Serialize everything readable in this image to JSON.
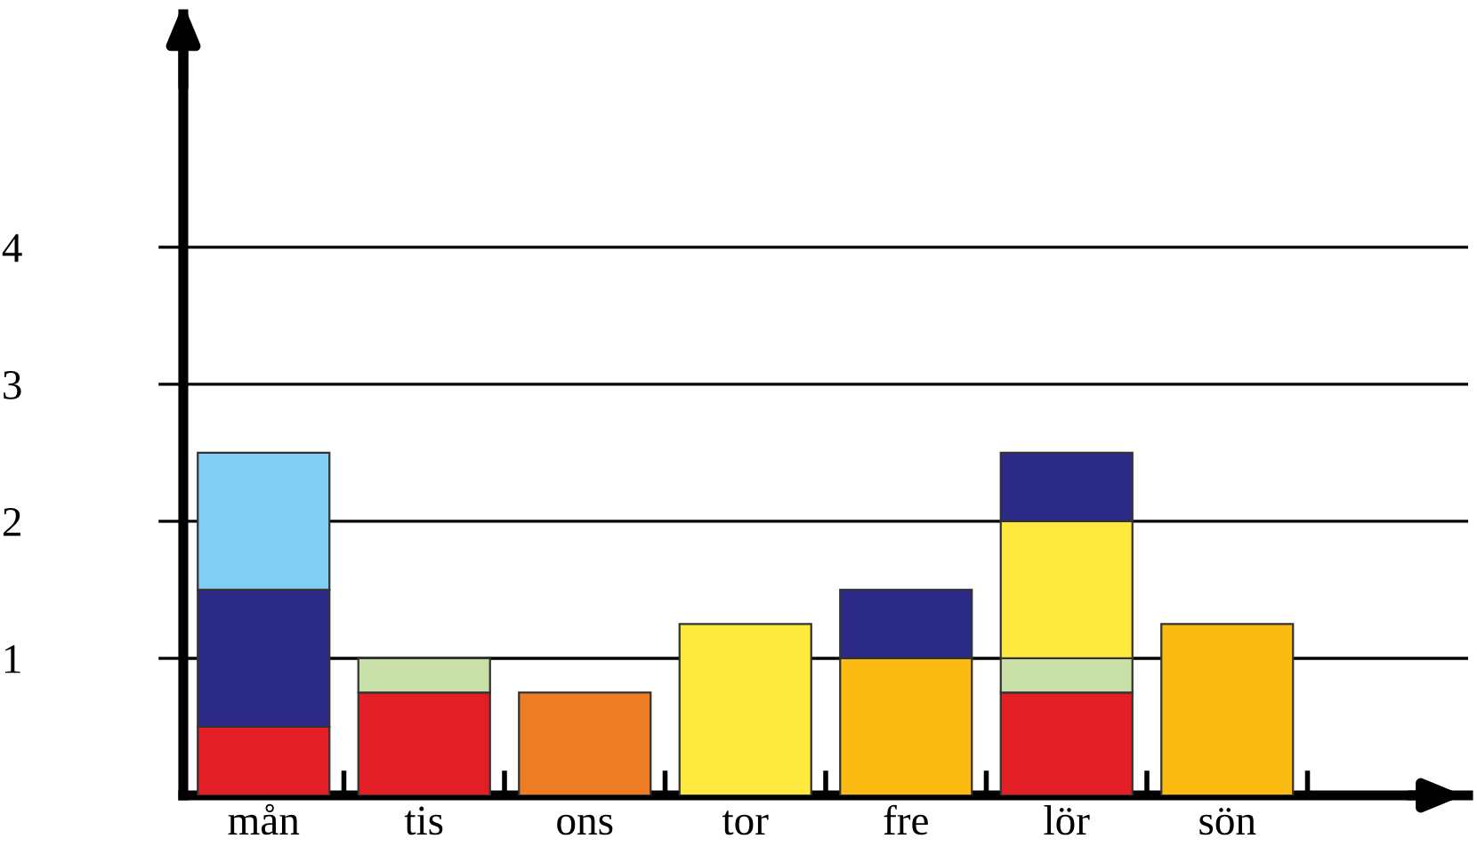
{
  "chart_data": {
    "type": "bar",
    "stacked": true,
    "categories": [
      "mån",
      "tis",
      "ons",
      "tor",
      "fre",
      "lör",
      "sön"
    ],
    "series": [
      {
        "color": "#e31e25",
        "values": [
          0.5,
          0.75,
          null,
          null,
          null,
          0.75,
          null
        ]
      },
      {
        "color": "#c8dfa7",
        "values": [
          null,
          0.25,
          null,
          null,
          null,
          0.25,
          null
        ]
      },
      {
        "color": "#ee7c22",
        "values": [
          null,
          null,
          0.75,
          null,
          null,
          null,
          null
        ]
      },
      {
        "color": "#feea3e",
        "values": [
          null,
          null,
          null,
          1.25,
          null,
          1.0,
          null
        ]
      },
      {
        "color": "#fbbb12",
        "values": [
          null,
          null,
          null,
          null,
          1.0,
          null,
          1.25
        ]
      },
      {
        "color": "#2b2a86",
        "values": [
          1.0,
          null,
          null,
          null,
          0.5,
          0.5,
          null
        ]
      },
      {
        "color": "#82cff4",
        "values": [
          1.0,
          null,
          null,
          null,
          null,
          null,
          null
        ]
      }
    ],
    "ylim": [
      0,
      5.7
    ],
    "yticks": [
      1,
      2,
      3,
      4
    ],
    "grid": "y",
    "legend": false
  }
}
